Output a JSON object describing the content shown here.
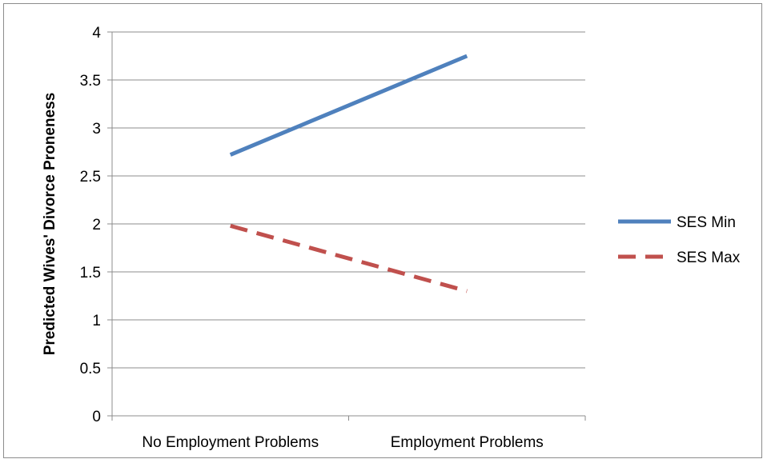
{
  "chart_data": {
    "type": "line",
    "title": "",
    "xlabel": "",
    "ylabel": "Predicted Wives' Divorce Proneness",
    "categories": [
      "No Employment Problems",
      "Employment Problems"
    ],
    "ylim": [
      0,
      4
    ],
    "yticks": [
      "0",
      "0.5",
      "1",
      "1.5",
      "2",
      "2.5",
      "3",
      "3.5",
      "4"
    ],
    "grid": true,
    "legend_position": "right",
    "series": [
      {
        "name": "SES Min",
        "values": [
          2.72,
          3.75
        ],
        "color": "#4f81bd",
        "style": "solid"
      },
      {
        "name": "SES Max",
        "values": [
          1.98,
          1.3
        ],
        "color": "#c0504d",
        "style": "dashed"
      }
    ]
  }
}
